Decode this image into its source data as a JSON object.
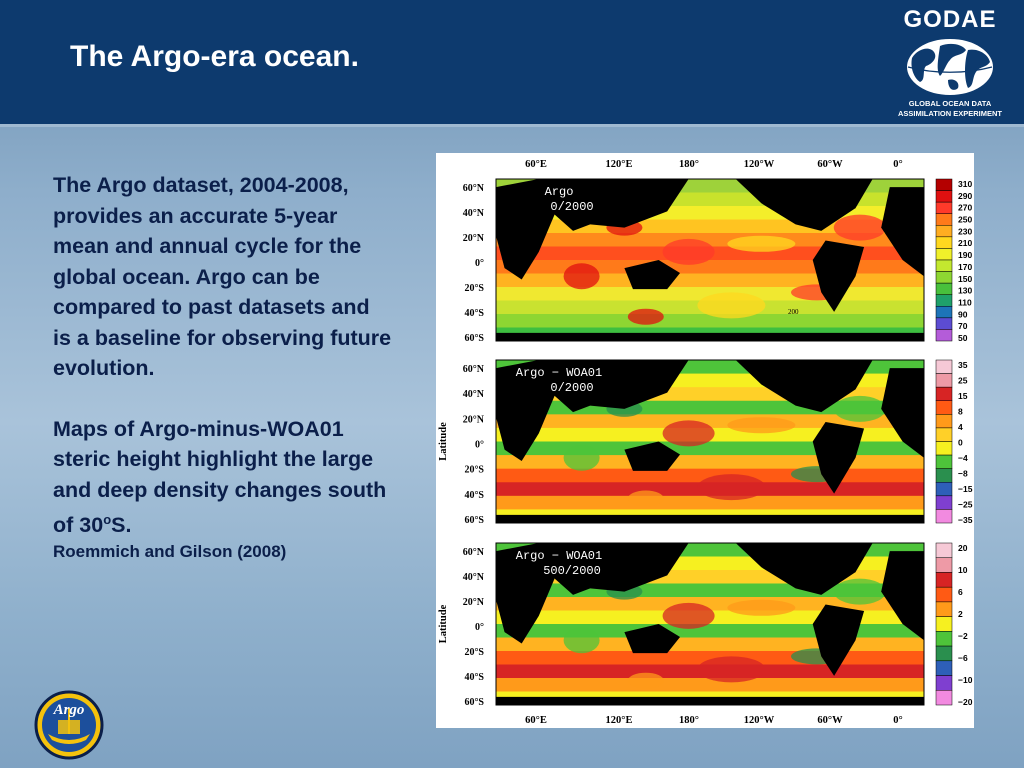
{
  "slide": {
    "title": "The Argo-era ocean.",
    "paragraph1": "The Argo dataset, 2004-2008, provides an accurate 5-year mean and annual cycle for the global ocean. Argo can be compared to past datasets and is a baseline for observing future evolution.",
    "paragraph2_main": "Maps of Argo-minus-WOA01 steric height highlight the large and deep density changes south of 30",
    "paragraph2_sup": "o",
    "paragraph2_end": "S.",
    "citation": "Roemmich and Gilson (2008)"
  },
  "logos": {
    "godae_name": "GODAE",
    "godae_sub1": "GLOBAL OCEAN DATA",
    "godae_sub2": "ASSIMILATION EXPERIMENT",
    "argo_name": "Argo"
  },
  "figure": {
    "lon_labels": [
      "60°E",
      "120°E",
      "180°",
      "120°W",
      "60°W",
      "0°"
    ],
    "lat_labels": [
      "60°N",
      "40°N",
      "20°N",
      "0°",
      "20°S",
      "40°S",
      "60°S"
    ],
    "axis_label": "Latitude",
    "panels": [
      {
        "label1": "Argo",
        "label2": "0/2000",
        "contour_label": "200",
        "ticks": [
          "310",
          "290",
          "270",
          "250",
          "230",
          "210",
          "190",
          "170",
          "150",
          "130",
          "110",
          "90",
          "70",
          "50"
        ],
        "colors": [
          "#b40000",
          "#e01010",
          "#ff3a2a",
          "#ff7a1a",
          "#ffad21",
          "#ffd81f",
          "#f0f02a",
          "#c3e82f",
          "#8ed632",
          "#48c03c",
          "#1fa06a",
          "#1d74b8",
          "#5c4cd2",
          "#b45cd9"
        ]
      },
      {
        "label1": "Argo − WOA01",
        "label2": "0/2000",
        "ticks": [
          "35",
          "25",
          "15",
          "8",
          "4",
          "0",
          "−4",
          "−8",
          "−15",
          "−25",
          "−35"
        ],
        "colors": [
          "#f6c9d6",
          "#ee9aa6",
          "#d72424",
          "#ff5a14",
          "#ff9a1a",
          "#ffd028",
          "#f6f020",
          "#4ec43a",
          "#2a8f4e",
          "#2e5fb8",
          "#7f3fd0",
          "#f28ae0"
        ]
      },
      {
        "label1": "Argo − WOA01",
        "label2": "500/2000",
        "ticks": [
          "20",
          "10",
          "6",
          "2",
          "−2",
          "−6",
          "−10",
          "−20"
        ],
        "colors": [
          "#f6c9d6",
          "#ee9aa6",
          "#d72424",
          "#ff5a14",
          "#ff9a1a",
          "#f6f020",
          "#4ec43a",
          "#2a8f4e",
          "#2e5fb8",
          "#7f3fd0",
          "#f28ae0"
        ]
      }
    ]
  }
}
